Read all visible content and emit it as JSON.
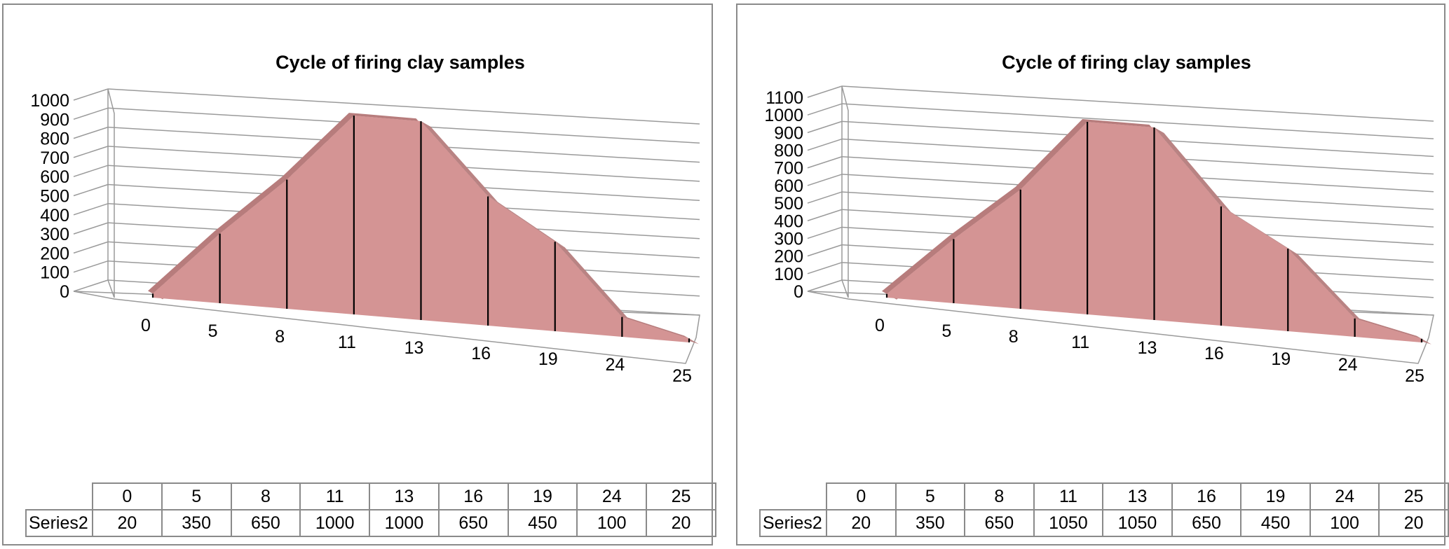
{
  "chart_data": [
    {
      "type": "area",
      "title": "Cycle of firing clay samples",
      "categories": [
        "0",
        "5",
        "8",
        "11",
        "13",
        "16",
        "19",
        "24",
        "25"
      ],
      "series": [
        {
          "name": "Series2",
          "values": [
            20,
            350,
            650,
            1000,
            1000,
            650,
            450,
            100,
            20
          ]
        }
      ],
      "yticks": [
        "0",
        "100",
        "200",
        "300",
        "400",
        "500",
        "600",
        "700",
        "800",
        "900",
        "1000"
      ],
      "ylim": [
        0,
        1000
      ],
      "grid": true,
      "table_header": "Series2",
      "color": "#d49494"
    },
    {
      "type": "area",
      "title": "Cycle of firing clay samples",
      "categories": [
        "0",
        "5",
        "8",
        "11",
        "13",
        "16",
        "19",
        "24",
        "25"
      ],
      "series": [
        {
          "name": "Series2",
          "values": [
            20,
            350,
            650,
            1050,
            1050,
            650,
            450,
            100,
            20
          ]
        }
      ],
      "yticks": [
        "0",
        "100",
        "200",
        "300",
        "400",
        "500",
        "600",
        "700",
        "800",
        "900",
        "1000",
        "1100"
      ],
      "ylim": [
        0,
        1100
      ],
      "grid": true,
      "table_header": "Series2",
      "color": "#d49494"
    }
  ]
}
